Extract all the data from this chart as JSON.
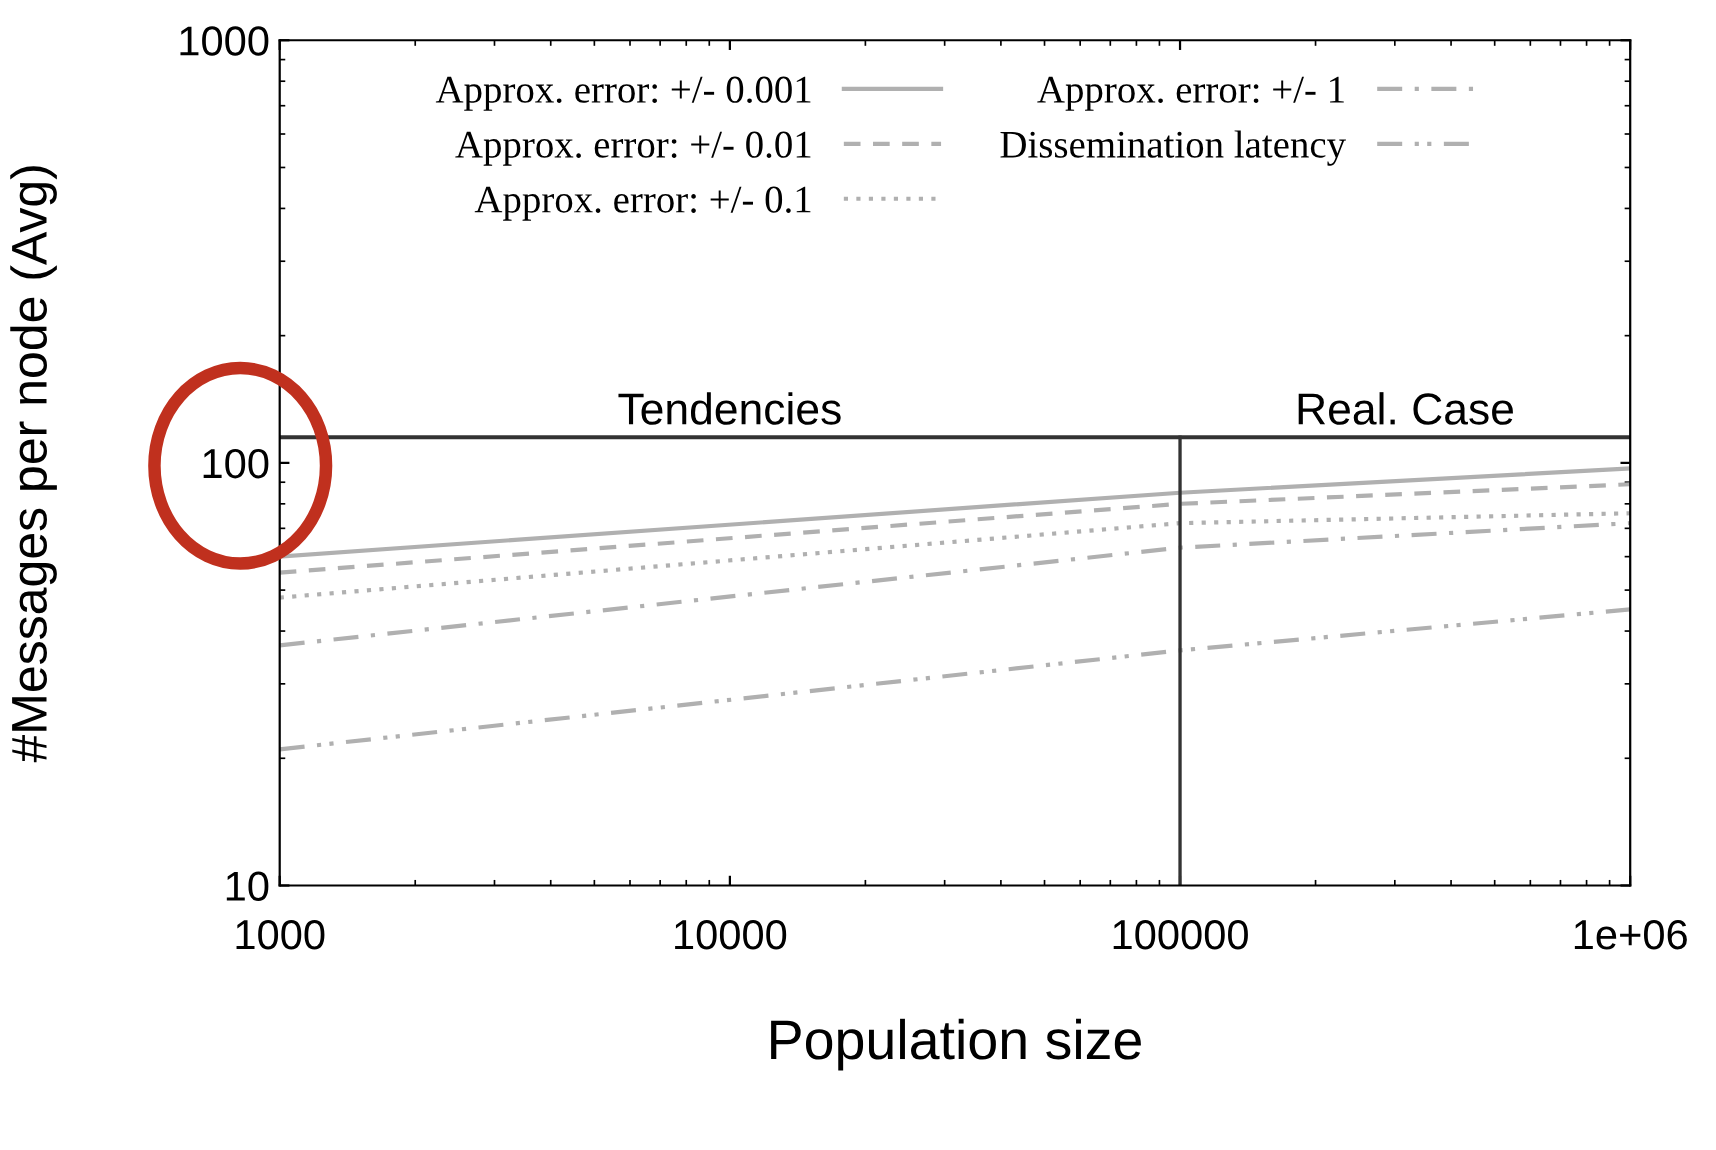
{
  "chart_data": {
    "type": "line",
    "xlabel": "Population size",
    "ylabel": "#Messages per node (Avg)",
    "x": [
      1000,
      100000,
      1000000
    ],
    "series": [
      {
        "name": "Approx. error: +/- 0.001",
        "color": "#b0b0b0",
        "line_style": "solid",
        "values": [
          60,
          85,
          97
        ]
      },
      {
        "name": "Approx. error: +/- 0.01",
        "color": "#b0b0b0",
        "line_style": "dashed",
        "values": [
          55,
          80,
          89
        ]
      },
      {
        "name": "Approx. error: +/- 0.1",
        "color": "#b0b0b0",
        "line_style": "dotted",
        "values": [
          48,
          72,
          76
        ]
      },
      {
        "name": "Approx. error: +/- 1",
        "color": "#b0b0b0",
        "line_style": "dashdot",
        "values": [
          37,
          63,
          72
        ]
      },
      {
        "name": "Dissemination latency",
        "color": "#b0b0b0",
        "line_style": "dashdotdot",
        "values": [
          21,
          36,
          45
        ]
      }
    ],
    "log": "xy",
    "xlim": [
      1000,
      1000000
    ],
    "ylim": [
      10,
      1000
    ],
    "xticks": [
      1000,
      10000,
      100000,
      {
        "value": 1000000,
        "label": "1e+06"
      }
    ],
    "yticks": [
      10,
      100,
      1000
    ],
    "ref_lines": [
      {
        "axis": "x",
        "value": 100000,
        "color": "#333333"
      },
      {
        "axis": "y",
        "value": 115,
        "color": "#333333"
      }
    ],
    "annotations": [
      {
        "text": "Tendencies",
        "x": 10000,
        "y": 115
      },
      {
        "text": "Real. Case",
        "x": 316000,
        "y": 115
      }
    ],
    "legend": "top",
    "grid": false
  }
}
